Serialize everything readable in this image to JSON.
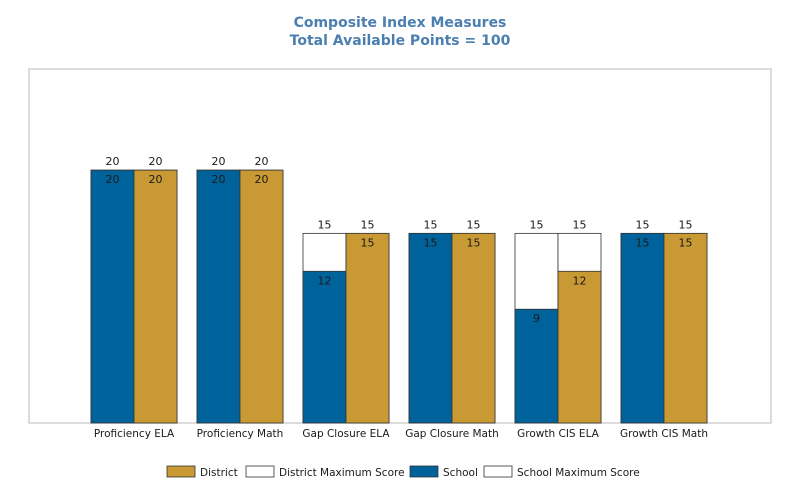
{
  "chart_data": {
    "type": "bar",
    "title": "Composite Index Measures",
    "subtitle": "Total Available Points = 100",
    "categories": [
      "Proficiency ELA",
      "Proficiency Math",
      "Gap Closure ELA",
      "Gap Closure Math",
      "Growth CIS ELA",
      "Growth CIS Math"
    ],
    "series": [
      {
        "name": "School",
        "values": [
          20,
          20,
          12,
          15,
          9,
          15
        ],
        "color": "#00629b"
      },
      {
        "name": "District",
        "values": [
          20,
          20,
          15,
          15,
          12,
          15
        ],
        "color": "#c99a34"
      }
    ],
    "maximum_series": [
      {
        "name": "School Maximum Score",
        "values": [
          20,
          20,
          15,
          15,
          15,
          15
        ],
        "color": "#ffffff"
      },
      {
        "name": "District Maximum Score",
        "values": [
          20,
          20,
          15,
          15,
          15,
          15
        ],
        "color": "#ffffff"
      }
    ],
    "ylim": [
      0,
      28
    ],
    "grid": false,
    "legend": {
      "position": "bottom",
      "entries": [
        {
          "name": "District",
          "color": "#c99a34"
        },
        {
          "name": "District Maximum Score",
          "color": "#ffffff"
        },
        {
          "name": "School",
          "color": "#00629b"
        },
        {
          "name": "School Maximum Score",
          "color": "#ffffff"
        }
      ]
    }
  }
}
